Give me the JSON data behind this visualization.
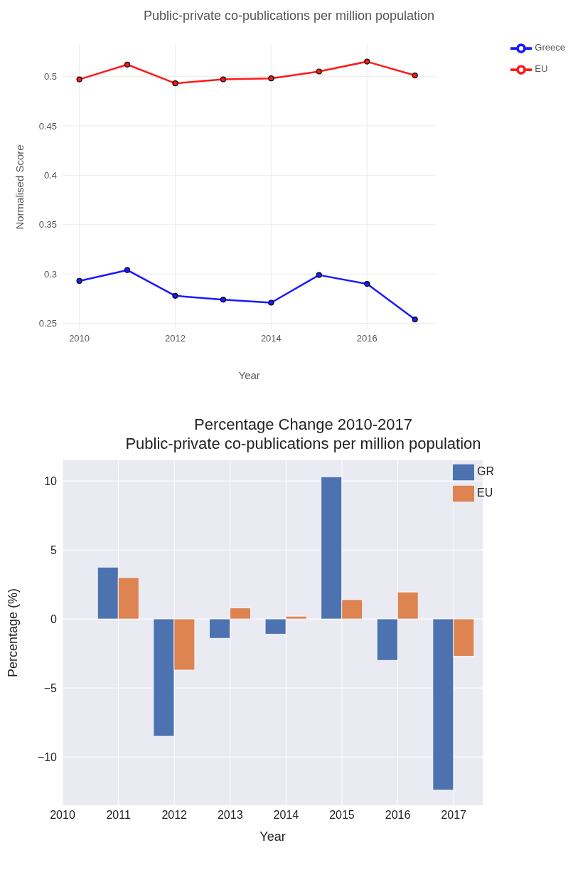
{
  "chart_data": [
    {
      "type": "line",
      "title": "Public-private co-publications per million population",
      "xlabel": "Year",
      "ylabel": "Normalised Score",
      "x": [
        2010,
        2011,
        2012,
        2013,
        2014,
        2015,
        2016,
        2017
      ],
      "series": [
        {
          "name": "Greece",
          "color": "#1a1aff",
          "values": [
            0.293,
            0.304,
            0.278,
            0.274,
            0.271,
            0.299,
            0.29,
            0.254
          ]
        },
        {
          "name": "EU",
          "color": "#ff1a1a",
          "values": [
            0.497,
            0.512,
            0.493,
            0.497,
            0.498,
            0.505,
            0.515,
            0.501
          ]
        }
      ],
      "xlim": [
        2009.65,
        2017.44
      ],
      "xticks": [
        2010,
        2012,
        2014,
        2016
      ],
      "ylim": [
        0.244,
        0.532
      ],
      "yticks": [
        0.25,
        0.3,
        0.35,
        0.4,
        0.45,
        0.5
      ],
      "grid": true,
      "legend": "right",
      "marker": "circle",
      "line_style": "solid"
    },
    {
      "type": "bar",
      "title": "Percentage Change 2010-2017\nPublic-private co-publications per million population",
      "xlabel": "Year",
      "ylabel": "Percentage (%)",
      "x": [
        2011,
        2012,
        2013,
        2014,
        2015,
        2016,
        2017
      ],
      "series": [
        {
          "name": "GR",
          "color": "#4c72b0",
          "values": [
            3.75,
            -8.5,
            -1.4,
            -1.1,
            10.3,
            -3.0,
            -12.4
          ]
        },
        {
          "name": "EU",
          "color": "#dd8452",
          "values": [
            3.0,
            -3.7,
            0.8,
            0.2,
            1.4,
            1.95,
            -2.7
          ]
        }
      ],
      "xlim": [
        2010,
        2017.52
      ],
      "xticks": [
        2010,
        2011,
        2012,
        2013,
        2014,
        2015,
        2016,
        2017
      ],
      "ylim": [
        -13.5,
        11.5
      ],
      "yticks": [
        {
          "value": -10,
          "label": "−10"
        },
        {
          "value": -5,
          "label": "−5"
        },
        0,
        5,
        10
      ],
      "grid": true,
      "legend": "top right"
    }
  ]
}
